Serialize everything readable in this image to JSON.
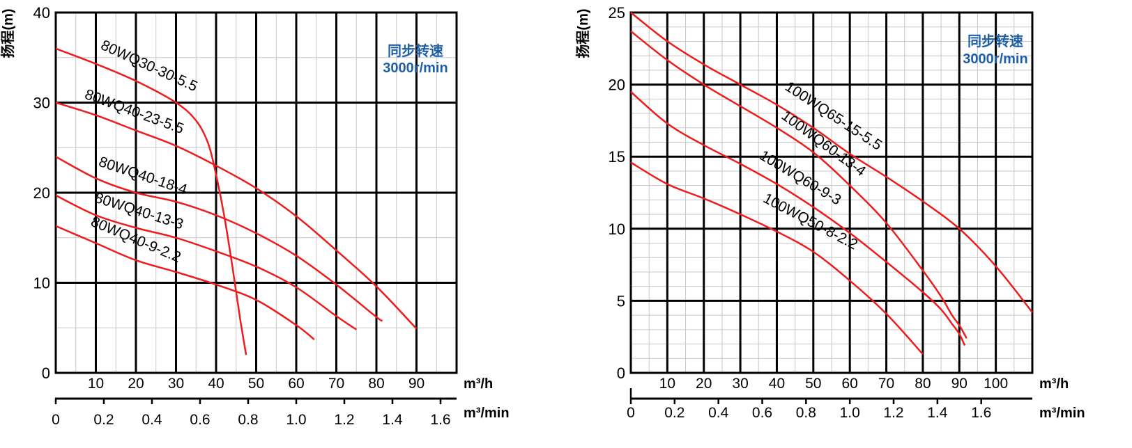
{
  "chart_data": [
    {
      "type": "line",
      "ylabel": "扬程(m)",
      "xlabel": "m³/h",
      "xlabel2": "m³/min",
      "xlim": [
        0,
        100
      ],
      "ylim": [
        0,
        40
      ],
      "x_ticks": [
        10,
        20,
        30,
        40,
        50,
        60,
        70,
        80,
        90
      ],
      "y_ticks": [
        0,
        10,
        20,
        30,
        40
      ],
      "x2_ticks": [
        0,
        0.2,
        0.4,
        0.6,
        0.8,
        1.0,
        1.2,
        1.4,
        1.6
      ],
      "x2_tick_labels": [
        "0",
        "0.2",
        "0.4",
        "0.6",
        "0.8",
        "1.0",
        "1.2",
        "1.4",
        "1.6"
      ],
      "annotation": [
        "同步转速",
        "3000r/min"
      ],
      "series": [
        {
          "name": "80WQ30-30-5.5",
          "x": [
            0,
            10,
            20,
            30,
            35,
            38,
            40,
            42,
            44,
            46,
            47.5
          ],
          "y": [
            36,
            34.3,
            32.4,
            30,
            28,
            25.5,
            22,
            17.5,
            12,
            6,
            2
          ]
        },
        {
          "name": "80WQ40-23-5.5",
          "x": [
            0,
            10,
            20,
            30,
            40,
            50,
            60,
            70,
            80,
            90
          ],
          "y": [
            30,
            28.6,
            26.9,
            25.2,
            23,
            20.5,
            17.4,
            13.6,
            9.6,
            4.9
          ]
        },
        {
          "name": "80WQ40-18-4",
          "x": [
            0,
            10,
            20,
            30,
            40,
            50,
            60,
            70,
            80,
            81.5
          ],
          "y": [
            24,
            21.6,
            20,
            19,
            17.5,
            15.5,
            13,
            9.8,
            6.2,
            5.8
          ]
        },
        {
          "name": "80WQ40-13-3",
          "x": [
            0,
            10,
            20,
            30,
            40,
            50,
            60,
            70,
            75
          ],
          "y": [
            19.7,
            17.5,
            16.1,
            15,
            13.5,
            11.8,
            9.5,
            6.3,
            4.8
          ]
        },
        {
          "name": "80WQ40-9-2.2",
          "x": [
            0,
            10,
            20,
            30,
            40,
            50,
            60,
            64.5
          ],
          "y": [
            16.3,
            14.4,
            12.5,
            11.2,
            9.8,
            8.1,
            5.3,
            3.7
          ]
        }
      ],
      "label_positions": [
        {
          "text": "80WQ30-30-5.5",
          "x": 11,
          "y": 36
        },
        {
          "text": "80WQ40-23-5.5",
          "x": 7,
          "y": 30.5
        },
        {
          "text": "80WQ40-18-4",
          "x": 10.5,
          "y": 23
        },
        {
          "text": "80WQ40-13-3",
          "x": 9.5,
          "y": 19
        },
        {
          "text": "80WQ40-9-2.2",
          "x": 8.5,
          "y": 16.4
        }
      ]
    },
    {
      "type": "line",
      "ylabel": "扬程(m)",
      "xlabel": "m³/h",
      "xlabel2": "m³/min",
      "xlim": [
        0,
        110
      ],
      "ylim": [
        0,
        25
      ],
      "x_ticks": [
        10,
        20,
        30,
        40,
        50,
        60,
        70,
        80,
        90,
        100
      ],
      "y_ticks": [
        0,
        5,
        10,
        15,
        20,
        25
      ],
      "x2_ticks": [
        0,
        0.2,
        0.4,
        0.6,
        0.8,
        1.0,
        1.2,
        1.4,
        1.6
      ],
      "x2_tick_labels": [
        "0",
        "0.2",
        "0.4",
        "0.6",
        "0.8",
        "1.0",
        "1.2",
        "1.4",
        "1.6"
      ],
      "annotation": [
        "同步转速",
        "3000r/min"
      ],
      "series": [
        {
          "name": "100WQ65-15-5.5",
          "x": [
            0,
            10,
            20,
            30,
            40,
            50,
            60,
            70,
            80,
            90,
            100,
            110
          ],
          "y": [
            25,
            23,
            21.4,
            20,
            18.6,
            17,
            15.2,
            13.6,
            11.9,
            10,
            7.4,
            4.2
          ]
        },
        {
          "name": "100WQ60-13-4",
          "x": [
            0,
            10,
            20,
            30,
            40,
            50,
            60,
            70,
            80,
            85,
            88,
            90,
            92
          ],
          "y": [
            23.7,
            21.7,
            20,
            18.5,
            17,
            15.3,
            13,
            10.4,
            7.1,
            5.3,
            4,
            3.3,
            2.4
          ]
        },
        {
          "name": "100WQ60-9-3",
          "x": [
            0,
            10,
            20,
            30,
            40,
            50,
            60,
            70,
            80,
            85,
            88,
            90,
            91.5
          ],
          "y": [
            19.5,
            17.3,
            15.8,
            14.5,
            13.1,
            11.5,
            9.7,
            7.7,
            5.6,
            4.4,
            3.4,
            2.7,
            1.9
          ]
        },
        {
          "name": "100WQ50-8-2.2",
          "x": [
            0,
            10,
            20,
            30,
            40,
            50,
            60,
            70,
            80
          ],
          "y": [
            14.6,
            13.1,
            12.1,
            11,
            9.8,
            8.4,
            6.4,
            4.1,
            1.3
          ]
        }
      ],
      "label_positions": [
        {
          "text": "100WQ65-15-5.5",
          "x": 42,
          "y": 19.7
        },
        {
          "text": "100WQ60-13-4",
          "x": 41,
          "y": 17.7
        },
        {
          "text": "100WQ60-9-3",
          "x": 35,
          "y": 14.9
        },
        {
          "text": "100WQ50-8-2.2",
          "x": 36,
          "y": 11.9
        }
      ]
    }
  ]
}
